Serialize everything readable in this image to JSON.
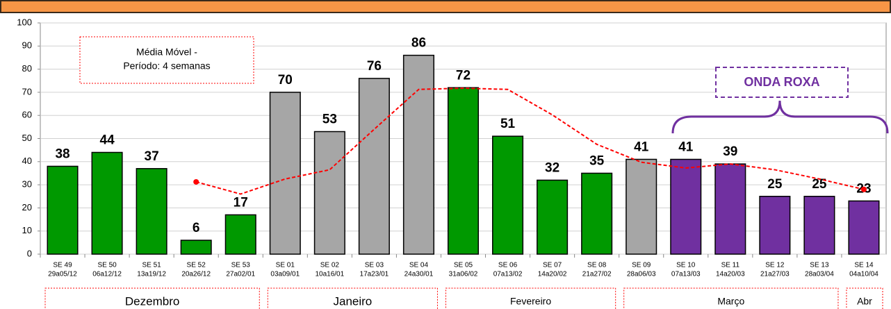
{
  "chart_data": {
    "type": "bar",
    "categories": [
      "SE 49",
      "SE 50",
      "SE 51",
      "SE 52",
      "SE 53",
      "SE 01",
      "SE 02",
      "SE 03",
      "SE 04",
      "SE 05",
      "SE 06",
      "SE 07",
      "SE 08",
      "SE 09",
      "SE 10",
      "SE 11",
      "SE 12",
      "SE 13",
      "SE 14"
    ],
    "category_dates": [
      "29a05/12",
      "06a12/12",
      "13a19/12",
      "20a26/12",
      "27a02/01",
      "03a09/01",
      "10a16/01",
      "17a23/01",
      "24a30/01",
      "31a06/02",
      "07a13/02",
      "14a20/02",
      "21a27/02",
      "28a06/03",
      "07a13/03",
      "14a20/03",
      "21a27/03",
      "28a03/04",
      "04a10/04"
    ],
    "values": [
      38,
      44,
      37,
      6,
      17,
      70,
      53,
      76,
      86,
      72,
      51,
      32,
      35,
      41,
      41,
      39,
      25,
      25,
      23
    ],
    "colors": [
      "#009900",
      "#009900",
      "#009900",
      "#009900",
      "#009900",
      "#a6a6a6",
      "#a6a6a6",
      "#a6a6a6",
      "#a6a6a6",
      "#009900",
      "#009900",
      "#009900",
      "#009900",
      "#a6a6a6",
      "#7030a0",
      "#7030a0",
      "#7030a0",
      "#7030a0",
      "#7030a0"
    ],
    "moving_average": {
      "color": "#ff0000",
      "values": [
        null,
        null,
        null,
        31.25,
        26,
        32.5,
        36.5,
        54,
        71.25,
        71.75,
        71.25,
        60.25,
        47.5,
        39.75,
        37.25,
        39,
        36.5,
        32.5,
        28
      ]
    },
    "months": [
      "Dezembro",
      "Janeiro",
      "Fevereiro",
      "Março",
      "Abr"
    ],
    "annotations": [
      "Média Móvel -",
      "Período: 4 semanas",
      "ONDA ROXA"
    ],
    "ylim": [
      0,
      100
    ],
    "yticks": [
      0,
      10,
      20,
      30,
      40,
      50,
      60,
      70,
      80,
      90,
      100
    ],
    "grid": true
  }
}
